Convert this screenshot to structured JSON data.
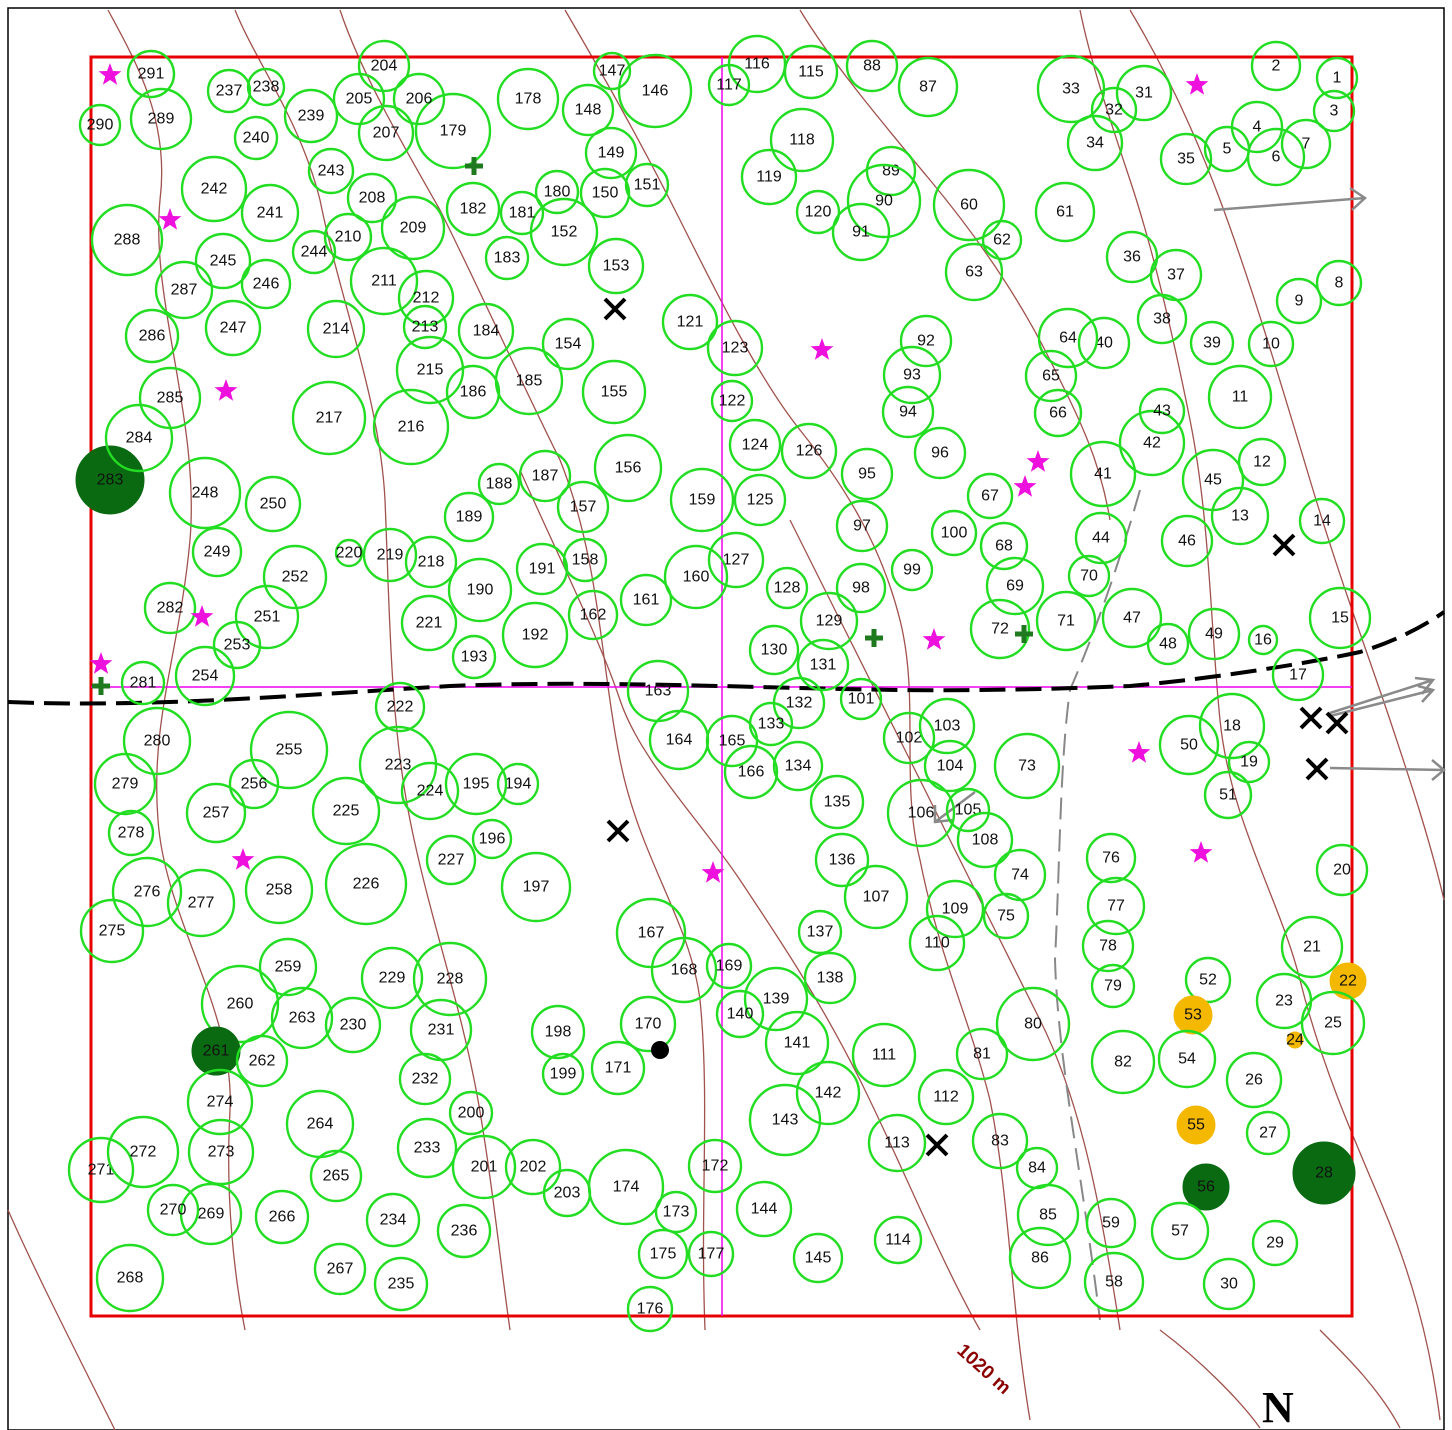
{
  "contour_label": "1020 m",
  "north_label": "N",
  "colors": {
    "plot_border": "#e60000",
    "tree_green": "#22dd22",
    "tree_dark": "#0a6a12",
    "tree_orange": "#f5b800",
    "contour": "#a0524d",
    "axis_line": "#ee00ee",
    "star": "#ee11dd",
    "road": "#000000",
    "trail": "#888888",
    "marker_cross": "#1f7a1f"
  },
  "trees": [
    {
      "n": "1",
      "s": "green"
    },
    {
      "n": "2",
      "s": "green"
    },
    {
      "n": "3",
      "s": "green"
    },
    {
      "n": "4",
      "s": "green"
    },
    {
      "n": "5",
      "s": "green"
    },
    {
      "n": "6",
      "s": "green"
    },
    {
      "n": "7",
      "s": "green"
    },
    {
      "n": "8",
      "s": "green"
    },
    {
      "n": "9",
      "s": "green"
    },
    {
      "n": "10",
      "s": "green"
    },
    {
      "n": "11",
      "s": "green"
    },
    {
      "n": "12",
      "s": "green"
    },
    {
      "n": "13",
      "s": "green"
    },
    {
      "n": "14",
      "s": "green"
    },
    {
      "n": "15",
      "s": "green"
    },
    {
      "n": "16",
      "s": "green"
    },
    {
      "n": "17",
      "s": "green"
    },
    {
      "n": "18",
      "s": "green"
    },
    {
      "n": "19",
      "s": "green"
    },
    {
      "n": "20",
      "s": "green"
    },
    {
      "n": "21",
      "s": "green"
    },
    {
      "n": "22",
      "s": "orange"
    },
    {
      "n": "23",
      "s": "green"
    },
    {
      "n": "24",
      "s": "orange"
    },
    {
      "n": "25",
      "s": "green"
    },
    {
      "n": "26",
      "s": "green"
    },
    {
      "n": "27",
      "s": "green"
    },
    {
      "n": "28",
      "s": "dark"
    },
    {
      "n": "29",
      "s": "green"
    },
    {
      "n": "30",
      "s": "green"
    },
    {
      "n": "31",
      "s": "green"
    },
    {
      "n": "32",
      "s": "green"
    },
    {
      "n": "33",
      "s": "green"
    },
    {
      "n": "34",
      "s": "green"
    },
    {
      "n": "35",
      "s": "green"
    },
    {
      "n": "36",
      "s": "green"
    },
    {
      "n": "37",
      "s": "green"
    },
    {
      "n": "38",
      "s": "green"
    },
    {
      "n": "39",
      "s": "green"
    },
    {
      "n": "40",
      "s": "green"
    },
    {
      "n": "41",
      "s": "green"
    },
    {
      "n": "42",
      "s": "green"
    },
    {
      "n": "43",
      "s": "green"
    },
    {
      "n": "44",
      "s": "green"
    },
    {
      "n": "45",
      "s": "green"
    },
    {
      "n": "46",
      "s": "green"
    },
    {
      "n": "47",
      "s": "green"
    },
    {
      "n": "48",
      "s": "green"
    },
    {
      "n": "49",
      "s": "green"
    },
    {
      "n": "50",
      "s": "green"
    },
    {
      "n": "51",
      "s": "green"
    },
    {
      "n": "52",
      "s": "green"
    },
    {
      "n": "53",
      "s": "orange"
    },
    {
      "n": "54",
      "s": "green"
    },
    {
      "n": "55",
      "s": "orange"
    },
    {
      "n": "56",
      "s": "dark"
    },
    {
      "n": "57",
      "s": "green"
    },
    {
      "n": "58",
      "s": "green"
    },
    {
      "n": "59",
      "s": "green"
    },
    {
      "n": "60",
      "s": "green"
    },
    {
      "n": "61",
      "s": "green"
    },
    {
      "n": "62",
      "s": "green"
    },
    {
      "n": "63",
      "s": "green"
    },
    {
      "n": "64",
      "s": "green"
    },
    {
      "n": "65",
      "s": "green"
    },
    {
      "n": "66",
      "s": "green"
    },
    {
      "n": "67",
      "s": "green"
    },
    {
      "n": "68",
      "s": "green"
    },
    {
      "n": "69",
      "s": "green"
    },
    {
      "n": "70",
      "s": "green"
    },
    {
      "n": "71",
      "s": "green"
    },
    {
      "n": "72",
      "s": "green"
    },
    {
      "n": "73",
      "s": "green"
    },
    {
      "n": "74",
      "s": "green"
    },
    {
      "n": "75",
      "s": "green"
    },
    {
      "n": "76",
      "s": "green"
    },
    {
      "n": "77",
      "s": "green"
    },
    {
      "n": "78",
      "s": "green"
    },
    {
      "n": "79",
      "s": "green"
    },
    {
      "n": "80",
      "s": "green"
    },
    {
      "n": "81",
      "s": "green"
    },
    {
      "n": "82",
      "s": "green"
    },
    {
      "n": "83",
      "s": "green"
    },
    {
      "n": "84",
      "s": "green"
    },
    {
      "n": "85",
      "s": "green"
    },
    {
      "n": "86",
      "s": "green"
    },
    {
      "n": "87",
      "s": "green"
    },
    {
      "n": "88",
      "s": "green"
    },
    {
      "n": "89",
      "s": "green"
    },
    {
      "n": "90",
      "s": "green"
    },
    {
      "n": "91",
      "s": "green"
    },
    {
      "n": "92",
      "s": "green"
    },
    {
      "n": "93",
      "s": "green"
    },
    {
      "n": "94",
      "s": "green"
    },
    {
      "n": "95",
      "s": "green"
    },
    {
      "n": "96",
      "s": "green"
    },
    {
      "n": "97",
      "s": "green"
    },
    {
      "n": "98",
      "s": "green"
    },
    {
      "n": "99",
      "s": "green"
    },
    {
      "n": "100",
      "s": "green"
    },
    {
      "n": "101",
      "s": "green"
    },
    {
      "n": "102",
      "s": "green"
    },
    {
      "n": "103",
      "s": "green"
    },
    {
      "n": "104",
      "s": "green"
    },
    {
      "n": "105",
      "s": "green"
    },
    {
      "n": "106",
      "s": "green"
    },
    {
      "n": "107",
      "s": "green"
    },
    {
      "n": "108",
      "s": "green"
    },
    {
      "n": "109",
      "s": "green"
    },
    {
      "n": "110",
      "s": "green"
    },
    {
      "n": "111",
      "s": "green"
    },
    {
      "n": "112",
      "s": "green"
    },
    {
      "n": "113",
      "s": "green"
    },
    {
      "n": "114",
      "s": "green"
    },
    {
      "n": "115",
      "s": "green"
    },
    {
      "n": "116",
      "s": "green"
    },
    {
      "n": "117",
      "s": "green"
    },
    {
      "n": "118",
      "s": "green"
    },
    {
      "n": "119",
      "s": "green"
    },
    {
      "n": "120",
      "s": "green"
    },
    {
      "n": "121",
      "s": "green"
    },
    {
      "n": "122",
      "s": "green"
    },
    {
      "n": "123",
      "s": "green"
    },
    {
      "n": "124",
      "s": "green"
    },
    {
      "n": "125",
      "s": "green"
    },
    {
      "n": "126",
      "s": "green"
    },
    {
      "n": "127",
      "s": "green"
    },
    {
      "n": "128",
      "s": "green"
    },
    {
      "n": "129",
      "s": "green"
    },
    {
      "n": "130",
      "s": "green"
    },
    {
      "n": "131",
      "s": "green"
    },
    {
      "n": "132",
      "s": "green"
    },
    {
      "n": "133",
      "s": "green"
    },
    {
      "n": "134",
      "s": "green"
    },
    {
      "n": "135",
      "s": "green"
    },
    {
      "n": "136",
      "s": "green"
    },
    {
      "n": "137",
      "s": "green"
    },
    {
      "n": "138",
      "s": "green"
    },
    {
      "n": "139",
      "s": "green"
    },
    {
      "n": "140",
      "s": "green"
    },
    {
      "n": "141",
      "s": "green"
    },
    {
      "n": "142",
      "s": "green"
    },
    {
      "n": "143",
      "s": "green"
    },
    {
      "n": "144",
      "s": "green"
    },
    {
      "n": "145",
      "s": "green"
    },
    {
      "n": "146",
      "s": "green"
    },
    {
      "n": "147",
      "s": "green"
    },
    {
      "n": "148",
      "s": "green"
    },
    {
      "n": "149",
      "s": "green"
    },
    {
      "n": "150",
      "s": "green"
    },
    {
      "n": "151",
      "s": "green"
    },
    {
      "n": "152",
      "s": "green"
    },
    {
      "n": "153",
      "s": "green"
    },
    {
      "n": "154",
      "s": "green"
    },
    {
      "n": "155",
      "s": "green"
    },
    {
      "n": "156",
      "s": "green"
    },
    {
      "n": "157",
      "s": "green"
    },
    {
      "n": "158",
      "s": "green"
    },
    {
      "n": "159",
      "s": "green"
    },
    {
      "n": "160",
      "s": "green"
    },
    {
      "n": "161",
      "s": "green"
    },
    {
      "n": "162",
      "s": "green"
    },
    {
      "n": "163",
      "s": "green"
    },
    {
      "n": "164",
      "s": "green"
    },
    {
      "n": "165",
      "s": "green"
    },
    {
      "n": "166",
      "s": "green"
    },
    {
      "n": "167",
      "s": "green"
    },
    {
      "n": "168",
      "s": "green"
    },
    {
      "n": "169",
      "s": "green"
    },
    {
      "n": "170",
      "s": "green"
    },
    {
      "n": "171",
      "s": "green"
    },
    {
      "n": "172",
      "s": "green"
    },
    {
      "n": "173",
      "s": "green"
    },
    {
      "n": "174",
      "s": "green"
    },
    {
      "n": "175",
      "s": "green"
    },
    {
      "n": "176",
      "s": "green"
    },
    {
      "n": "177",
      "s": "green"
    },
    {
      "n": "178",
      "s": "green"
    },
    {
      "n": "179",
      "s": "green"
    },
    {
      "n": "180",
      "s": "green"
    },
    {
      "n": "181",
      "s": "green"
    },
    {
      "n": "182",
      "s": "green"
    },
    {
      "n": "183",
      "s": "green"
    },
    {
      "n": "184",
      "s": "green"
    },
    {
      "n": "185",
      "s": "green"
    },
    {
      "n": "186",
      "s": "green"
    },
    {
      "n": "187",
      "s": "green"
    },
    {
      "n": "188",
      "s": "green"
    },
    {
      "n": "189",
      "s": "green"
    },
    {
      "n": "190",
      "s": "green"
    },
    {
      "n": "191",
      "s": "green"
    },
    {
      "n": "192",
      "s": "green"
    },
    {
      "n": "193",
      "s": "green"
    },
    {
      "n": "194",
      "s": "green"
    },
    {
      "n": "195",
      "s": "green"
    },
    {
      "n": "196",
      "s": "green"
    },
    {
      "n": "197",
      "s": "green"
    },
    {
      "n": "198",
      "s": "green"
    },
    {
      "n": "199",
      "s": "green"
    },
    {
      "n": "200",
      "s": "green"
    },
    {
      "n": "201",
      "s": "green"
    },
    {
      "n": "202",
      "s": "green"
    },
    {
      "n": "203",
      "s": "green"
    },
    {
      "n": "204",
      "s": "green"
    },
    {
      "n": "205",
      "s": "green"
    },
    {
      "n": "206",
      "s": "green"
    },
    {
      "n": "207",
      "s": "green"
    },
    {
      "n": "208",
      "s": "green"
    },
    {
      "n": "209",
      "s": "green"
    },
    {
      "n": "210",
      "s": "green"
    },
    {
      "n": "211",
      "s": "green"
    },
    {
      "n": "212",
      "s": "green"
    },
    {
      "n": "213",
      "s": "green"
    },
    {
      "n": "214",
      "s": "green"
    },
    {
      "n": "215",
      "s": "green"
    },
    {
      "n": "216",
      "s": "green"
    },
    {
      "n": "217",
      "s": "green"
    },
    {
      "n": "218",
      "s": "green"
    },
    {
      "n": "219",
      "s": "green"
    },
    {
      "n": "220",
      "s": "green"
    },
    {
      "n": "221",
      "s": "green"
    },
    {
      "n": "222",
      "s": "green"
    },
    {
      "n": "223",
      "s": "green"
    },
    {
      "n": "224",
      "s": "green"
    },
    {
      "n": "225",
      "s": "green"
    },
    {
      "n": "226",
      "s": "green"
    },
    {
      "n": "227",
      "s": "green"
    },
    {
      "n": "228",
      "s": "green"
    },
    {
      "n": "229",
      "s": "green"
    },
    {
      "n": "230",
      "s": "green"
    },
    {
      "n": "231",
      "s": "green"
    },
    {
      "n": "232",
      "s": "green"
    },
    {
      "n": "233",
      "s": "green"
    },
    {
      "n": "234",
      "s": "green"
    },
    {
      "n": "235",
      "s": "green"
    },
    {
      "n": "236",
      "s": "green"
    },
    {
      "n": "237",
      "s": "green"
    },
    {
      "n": "238",
      "s": "green"
    },
    {
      "n": "239",
      "s": "green"
    },
    {
      "n": "240",
      "s": "green"
    },
    {
      "n": "241",
      "s": "green"
    },
    {
      "n": "242",
      "s": "green"
    },
    {
      "n": "243",
      "s": "green"
    },
    {
      "n": "244",
      "s": "green"
    },
    {
      "n": "245",
      "s": "green"
    },
    {
      "n": "246",
      "s": "green"
    },
    {
      "n": "247",
      "s": "green"
    },
    {
      "n": "248",
      "s": "green"
    },
    {
      "n": "249",
      "s": "green"
    },
    {
      "n": "250",
      "s": "green"
    },
    {
      "n": "251",
      "s": "green"
    },
    {
      "n": "252",
      "s": "green"
    },
    {
      "n": "253",
      "s": "green"
    },
    {
      "n": "254",
      "s": "green"
    },
    {
      "n": "255",
      "s": "green"
    },
    {
      "n": "256",
      "s": "green"
    },
    {
      "n": "257",
      "s": "green"
    },
    {
      "n": "258",
      "s": "green"
    },
    {
      "n": "259",
      "s": "green"
    },
    {
      "n": "260",
      "s": "green"
    },
    {
      "n": "261",
      "s": "dark"
    },
    {
      "n": "262",
      "s": "green"
    },
    {
      "n": "263",
      "s": "green"
    },
    {
      "n": "264",
      "s": "green"
    },
    {
      "n": "265",
      "s": "green"
    },
    {
      "n": "266",
      "s": "green"
    },
    {
      "n": "267",
      "s": "green"
    },
    {
      "n": "268",
      "s": "green"
    },
    {
      "n": "269",
      "s": "green"
    },
    {
      "n": "270",
      "s": "green"
    },
    {
      "n": "271",
      "s": "green"
    },
    {
      "n": "272",
      "s": "green"
    },
    {
      "n": "273",
      "s": "green"
    },
    {
      "n": "274",
      "s": "green"
    },
    {
      "n": "275",
      "s": "green"
    },
    {
      "n": "276",
      "s": "green"
    },
    {
      "n": "277",
      "s": "green"
    },
    {
      "n": "278",
      "s": "green"
    },
    {
      "n": "279",
      "s": "green"
    },
    {
      "n": "280",
      "s": "green"
    },
    {
      "n": "281",
      "s": "green"
    },
    {
      "n": "282",
      "s": "green"
    },
    {
      "n": "283",
      "s": "dark"
    },
    {
      "n": "284",
      "s": "green"
    },
    {
      "n": "285",
      "s": "green"
    },
    {
      "n": "286",
      "s": "green"
    },
    {
      "n": "287",
      "s": "green"
    },
    {
      "n": "288",
      "s": "green"
    },
    {
      "n": "289",
      "s": "green"
    },
    {
      "n": "290",
      "s": "green"
    },
    {
      "n": "291",
      "s": "green"
    }
  ]
}
